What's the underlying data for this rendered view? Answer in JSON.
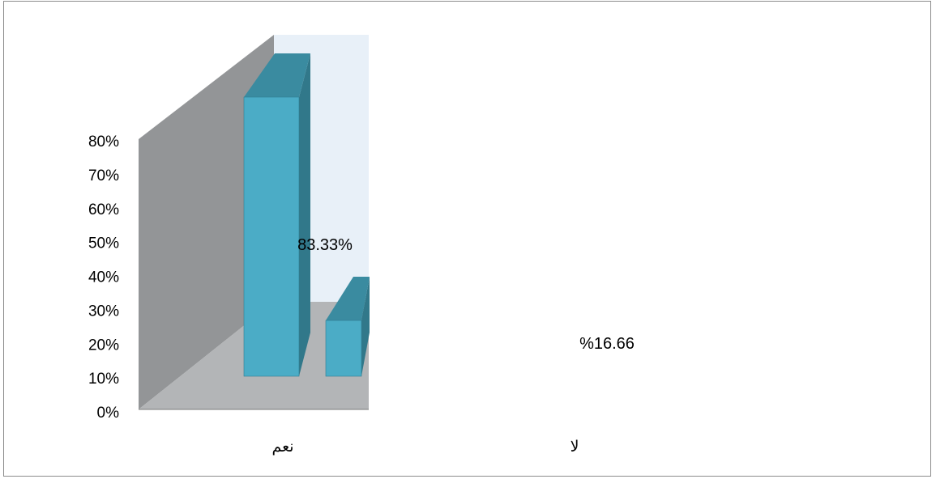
{
  "chart_data": {
    "type": "bar",
    "categories": [
      "نعم",
      "لا"
    ],
    "values": [
      83.33,
      16.66
    ],
    "data_labels": [
      "83.33%",
      "%16.66"
    ],
    "yticks": [
      "0%",
      "10%",
      "20%",
      "30%",
      "40%",
      "50%",
      "60%",
      "70%",
      "80%"
    ],
    "ylim": [
      0,
      80
    ],
    "title": "",
    "xlabel": "",
    "ylabel": "",
    "grid": false,
    "legend": "none",
    "three_d": true,
    "colors": {
      "bar_front": "#4bacc6",
      "bar_side": "#31788a",
      "bar_top": "#3a8ba0",
      "side_wall": "#939597",
      "floor": "#b3b5b7",
      "back_wall": "#e8f0f8"
    }
  }
}
